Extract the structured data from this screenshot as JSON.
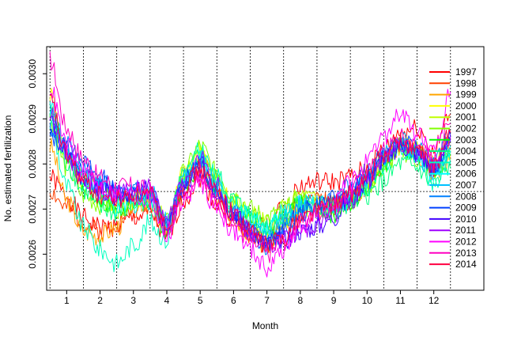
{
  "chart_data": {
    "type": "line",
    "title": "",
    "xlabel": "Month",
    "ylabel": "No. estimated fertilization",
    "xlim": [
      0.4,
      13.5
    ],
    "ylim": [
      0.00252,
      0.00306
    ],
    "x_ticks": [
      1,
      2,
      3,
      4,
      5,
      6,
      7,
      8,
      9,
      10,
      11,
      12
    ],
    "x_tick_labels": [
      "1",
      "2",
      "3",
      "4",
      "5",
      "6",
      "7",
      "8",
      "9",
      "10",
      "11",
      "12"
    ],
    "y_ticks": [
      0.0026,
      0.0027,
      0.0028,
      0.0029,
      0.003
    ],
    "y_tick_labels": [
      "0.0026",
      "0.0027",
      "0.0028",
      "0.0029",
      "0.0030"
    ],
    "month_boundaries": [
      0.5,
      1.5,
      2.5,
      3.5,
      4.5,
      5.5,
      6.5,
      7.5,
      8.5,
      9.5,
      10.5,
      11.5,
      12.5
    ],
    "mean_line": 0.002739,
    "grid": false,
    "legend_position": "right",
    "x": [
      0.5,
      1.0,
      1.5,
      2.0,
      2.5,
      3.0,
      3.5,
      4.0,
      4.5,
      5.0,
      5.5,
      6.0,
      6.5,
      7.0,
      7.5,
      8.0,
      8.5,
      9.0,
      9.5,
      10.0,
      10.5,
      11.0,
      11.5,
      12.0,
      12.5
    ],
    "series": [
      {
        "name": "1997",
        "color": "#ff0000",
        "values": [
          0.00277,
          0.00273,
          0.00268,
          0.00266,
          0.00266,
          0.00268,
          0.00269,
          0.00263,
          0.00272,
          0.00277,
          0.00271,
          0.00267,
          0.00266,
          0.00266,
          0.0027,
          0.00275,
          0.00276,
          0.00276,
          0.00277,
          0.00279,
          0.00283,
          0.00287,
          0.00288,
          0.00283,
          0.00291
        ]
      },
      {
        "name": "1998",
        "color": "#ff4000",
        "values": [
          0.00274,
          0.0027,
          0.00267,
          0.00265,
          0.00267,
          0.0027,
          0.00271,
          0.00265,
          0.00275,
          0.00279,
          0.00273,
          0.00268,
          0.00264,
          0.00262,
          0.00267,
          0.00271,
          0.00272,
          0.00271,
          0.00272,
          0.00275,
          0.0028,
          0.00285,
          0.00283,
          0.00279,
          0.00285
        ]
      },
      {
        "name": "1999",
        "color": "#ffa500",
        "values": [
          0.00284,
          0.00272,
          0.00265,
          0.00264,
          0.00266,
          0.00271,
          0.00272,
          0.00266,
          0.00277,
          0.00282,
          0.00276,
          0.00268,
          0.00265,
          0.00262,
          0.00266,
          0.0027,
          0.00272,
          0.00271,
          0.00272,
          0.00276,
          0.00281,
          0.00284,
          0.00282,
          0.00278,
          0.00281
        ]
      },
      {
        "name": "2000",
        "color": "#ffff00",
        "values": [
          0.00296,
          0.00283,
          0.00276,
          0.00272,
          0.00271,
          0.00272,
          0.00273,
          0.00266,
          0.00278,
          0.00282,
          0.00276,
          0.00271,
          0.00268,
          0.00264,
          0.00267,
          0.0027,
          0.0027,
          0.0027,
          0.00272,
          0.00276,
          0.00281,
          0.00285,
          0.00283,
          0.00279,
          0.00283
        ]
      },
      {
        "name": "2001",
        "color": "#c0ff00",
        "values": [
          0.00292,
          0.00282,
          0.00277,
          0.00274,
          0.00272,
          0.00273,
          0.00273,
          0.00267,
          0.00278,
          0.00283,
          0.00277,
          0.00272,
          0.00269,
          0.00267,
          0.0027,
          0.00273,
          0.00272,
          0.00271,
          0.00272,
          0.00275,
          0.0028,
          0.00284,
          0.00283,
          0.0028,
          0.00284
        ]
      },
      {
        "name": "2002",
        "color": "#80ff00",
        "values": [
          0.0029,
          0.00279,
          0.00273,
          0.00271,
          0.0027,
          0.00272,
          0.00273,
          0.00267,
          0.00278,
          0.00284,
          0.00278,
          0.00273,
          0.0027,
          0.00268,
          0.0027,
          0.00272,
          0.00271,
          0.0027,
          0.00272,
          0.00275,
          0.00279,
          0.00283,
          0.00281,
          0.00278,
          0.00282
        ]
      },
      {
        "name": "2003",
        "color": "#00ff00",
        "values": [
          0.00293,
          0.00282,
          0.00276,
          0.00272,
          0.0027,
          0.00271,
          0.00272,
          0.00265,
          0.00275,
          0.0028,
          0.00275,
          0.0027,
          0.00268,
          0.00265,
          0.00268,
          0.00271,
          0.0027,
          0.00269,
          0.00271,
          0.00275,
          0.0028,
          0.00284,
          0.00282,
          0.00278,
          0.00282
        ]
      },
      {
        "name": "2004",
        "color": "#00ff80",
        "values": [
          0.00291,
          0.0028,
          0.00274,
          0.0027,
          0.00269,
          0.00271,
          0.00272,
          0.00266,
          0.00277,
          0.00282,
          0.00277,
          0.00272,
          0.00269,
          0.00266,
          0.00268,
          0.0027,
          0.0027,
          0.0027,
          0.00271,
          0.00273,
          0.00276,
          0.0028,
          0.00279,
          0.00275,
          0.00279
        ]
      },
      {
        "name": "2005",
        "color": "#00ffc0",
        "values": [
          0.00289,
          0.00275,
          0.00266,
          0.00261,
          0.00258,
          0.00262,
          0.00267,
          0.00263,
          0.00277,
          0.00283,
          0.00277,
          0.00271,
          0.00268,
          0.00266,
          0.00268,
          0.00271,
          0.00271,
          0.0027,
          0.00272,
          0.00275,
          0.0028,
          0.00283,
          0.00281,
          0.00276,
          0.0028
        ]
      },
      {
        "name": "2006",
        "color": "#00ffff",
        "values": [
          0.00293,
          0.00283,
          0.00277,
          0.00273,
          0.0027,
          0.00271,
          0.00272,
          0.00266,
          0.00276,
          0.00281,
          0.00275,
          0.00271,
          0.00268,
          0.00266,
          0.00269,
          0.00271,
          0.0027,
          0.0027,
          0.00272,
          0.00276,
          0.00281,
          0.00284,
          0.00282,
          0.00278,
          0.00283
        ]
      },
      {
        "name": "2007",
        "color": "#00c0ff",
        "values": [
          0.00292,
          0.00283,
          0.00278,
          0.00275,
          0.00273,
          0.00273,
          0.00274,
          0.00267,
          0.00277,
          0.00281,
          0.00275,
          0.0027,
          0.00266,
          0.00264,
          0.00268,
          0.00271,
          0.00271,
          0.00271,
          0.00273,
          0.00277,
          0.00282,
          0.00285,
          0.00282,
          0.00278,
          0.00284
        ]
      },
      {
        "name": "2008",
        "color": "#0080ff",
        "values": [
          0.00288,
          0.00284,
          0.00279,
          0.00276,
          0.00274,
          0.00274,
          0.00274,
          0.00267,
          0.00276,
          0.0028,
          0.00274,
          0.00269,
          0.00265,
          0.00262,
          0.00266,
          0.0027,
          0.00271,
          0.00272,
          0.00275,
          0.00278,
          0.00282,
          0.00285,
          0.00283,
          0.0028,
          0.00287
        ]
      },
      {
        "name": "2009",
        "color": "#0040ff",
        "values": [
          0.00286,
          0.00284,
          0.0028,
          0.00277,
          0.00274,
          0.00273,
          0.00273,
          0.00266,
          0.00276,
          0.0028,
          0.00274,
          0.00269,
          0.00265,
          0.00262,
          0.00265,
          0.00269,
          0.00271,
          0.00272,
          0.00274,
          0.00277,
          0.00282,
          0.00285,
          0.00283,
          0.00279,
          0.00285
        ]
      },
      {
        "name": "2010",
        "color": "#4000ff",
        "values": [
          0.0029,
          0.00282,
          0.00277,
          0.00274,
          0.00273,
          0.00274,
          0.00274,
          0.00266,
          0.00274,
          0.00279,
          0.00274,
          0.00269,
          0.00265,
          0.00262,
          0.00263,
          0.00265,
          0.00266,
          0.00268,
          0.00272,
          0.00276,
          0.00281,
          0.00284,
          0.00282,
          0.00279,
          0.00286
        ]
      },
      {
        "name": "2011",
        "color": "#a000ff",
        "values": [
          0.00291,
          0.00282,
          0.00277,
          0.00274,
          0.00273,
          0.00274,
          0.00275,
          0.00267,
          0.00276,
          0.00281,
          0.00275,
          0.00269,
          0.00265,
          0.00262,
          0.00263,
          0.00265,
          0.00267,
          0.00269,
          0.00272,
          0.00276,
          0.00281,
          0.00285,
          0.00283,
          0.00279,
          0.00286
        ]
      },
      {
        "name": "2012",
        "color": "#ff00ff",
        "values": [
          0.00297,
          0.00284,
          0.00278,
          0.00275,
          0.00273,
          0.00273,
          0.00272,
          0.00264,
          0.00272,
          0.00276,
          0.0027,
          0.00265,
          0.00261,
          0.00257,
          0.00261,
          0.00266,
          0.00269,
          0.00272,
          0.00276,
          0.0028,
          0.00286,
          0.00291,
          0.00287,
          0.00282,
          0.00296
        ]
      },
      {
        "name": "2013",
        "color": "#ff00c0",
        "values": [
          0.00303,
          0.00288,
          0.00281,
          0.00277,
          0.00275,
          0.00275,
          0.00274,
          0.00265,
          0.00274,
          0.00278,
          0.00272,
          0.00267,
          0.00263,
          0.0026,
          0.00263,
          0.00267,
          0.00269,
          0.00271,
          0.00274,
          0.00278,
          0.00283,
          0.00286,
          0.00284,
          0.00281,
          0.00289
        ]
      },
      {
        "name": "2014",
        "color": "#ff0040",
        "values": [
          0.00294,
          0.00282,
          0.00276,
          0.00273,
          0.00272,
          0.00273,
          0.00273,
          0.00266,
          0.00275,
          0.00279,
          0.00274,
          0.00269,
          0.00265,
          0.00262,
          0.00264,
          0.00268,
          0.0027,
          0.00271,
          0.00273,
          0.00277,
          0.00282,
          0.00285,
          0.00283,
          0.00279,
          0.00287
        ]
      }
    ]
  }
}
